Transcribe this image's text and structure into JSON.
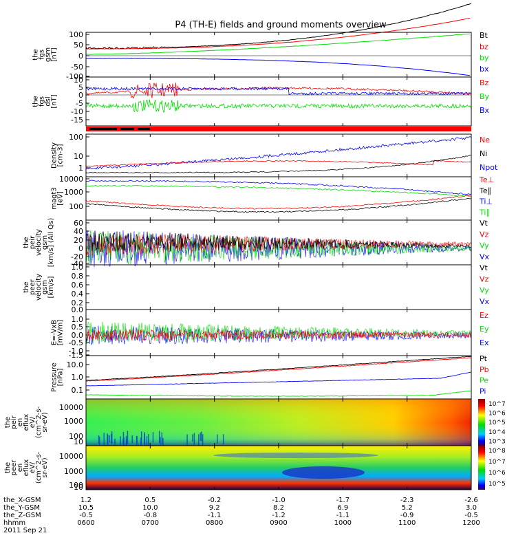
{
  "title": "P4 (TH-E) fields and ground moments overview",
  "colors": {
    "black": "#000000",
    "red": "#ff0000",
    "green": "#00dd00",
    "blue": "#0000ff"
  },
  "panels": [
    {
      "id": "fgs-gsm",
      "ylabel": [
        "the",
        "fgs",
        "gsm",
        "[nT]"
      ],
      "yticks": [
        "100",
        "50",
        "0",
        "-50",
        "-100"
      ],
      "legend": [
        {
          "label": "Bt",
          "color": "black"
        },
        {
          "label": "bz",
          "color": "red"
        },
        {
          "label": "by",
          "color": "green"
        },
        {
          "label": "bx",
          "color": "blue"
        }
      ]
    },
    {
      "id": "fgs-dsl",
      "ylabel": [
        "the",
        "fgs",
        "dsl",
        "[nT]"
      ],
      "yticks": [
        "10",
        "5",
        "0",
        "-5",
        "-10",
        "-15"
      ],
      "legend": [
        {
          "label": "Bz",
          "color": "red"
        },
        {
          "label": "By",
          "color": "green"
        },
        {
          "label": "Bx",
          "color": "blue"
        }
      ]
    },
    {
      "id": "density",
      "ylabel": [
        "Density",
        "[cm-3]"
      ],
      "yticks": [
        "100",
        "10",
        "1"
      ],
      "legend": [
        {
          "label": "Ne",
          "color": "red"
        },
        {
          "label": "Ni",
          "color": "black"
        },
        {
          "label": "Npot",
          "color": "blue"
        }
      ]
    },
    {
      "id": "temperature",
      "ylabel": [
        "magt3",
        "[eV]"
      ],
      "yticks": [
        "10000",
        "1000",
        "100"
      ],
      "legend": [
        {
          "label": "Te⊥",
          "color": "red"
        },
        {
          "label": "Te∥",
          "color": "black"
        },
        {
          "label": "Ti⊥",
          "color": "blue"
        },
        {
          "label": "Ti∥",
          "color": "green"
        }
      ]
    },
    {
      "id": "peir-velocity",
      "ylabel": [
        "the",
        "peir",
        "velocity",
        "gsm",
        "[km/s] (All Qs)"
      ],
      "yticks": [
        "60",
        "40",
        "20",
        "0",
        "-20",
        "-40"
      ],
      "legend": [
        {
          "label": "Vt",
          "color": "black"
        },
        {
          "label": "Vz",
          "color": "red"
        },
        {
          "label": "Vy",
          "color": "green"
        },
        {
          "label": "Vx",
          "color": "blue"
        }
      ]
    },
    {
      "id": "peer-velocity",
      "ylabel": [
        "the",
        "peer",
        "velocity",
        "gsm",
        "[km/s]"
      ],
      "yticks": [
        "1.0",
        "0.8",
        "0.6",
        "0.4",
        "0.2",
        "0.0"
      ],
      "legend": [
        {
          "label": "Vt",
          "color": "black"
        },
        {
          "label": "Vz",
          "color": "red"
        },
        {
          "label": "Vy",
          "color": "green"
        },
        {
          "label": "Vx",
          "color": "blue"
        }
      ]
    },
    {
      "id": "efield",
      "ylabel": [
        "E=-VxB",
        "[mV/m]"
      ],
      "yticks": [
        "1.0",
        "0.5",
        "0.0",
        "-0.5",
        "-1.0",
        "-1.5"
      ],
      "legend": [
        {
          "label": "Ez",
          "color": "red"
        },
        {
          "label": "Ey",
          "color": "green"
        },
        {
          "label": "Ex",
          "color": "blue"
        }
      ]
    },
    {
      "id": "pressure",
      "ylabel": [
        "Pressure",
        "[nPa]"
      ],
      "yticks": [
        "10.0",
        "1.0",
        "0.1"
      ],
      "legend": [
        {
          "label": "Pt",
          "color": "black"
        },
        {
          "label": "Pb",
          "color": "red"
        },
        {
          "label": "Pe",
          "color": "green"
        },
        {
          "label": "Pi",
          "color": "blue"
        }
      ]
    },
    {
      "id": "peir-eflux",
      "ylabel": [
        "the",
        "peir",
        "en",
        "eflux",
        "eV/",
        "(cm^2-s-",
        "sr-eV)"
      ],
      "yticks": [
        "10000",
        "1000",
        "100",
        "10"
      ],
      "colorbar": [
        "10^7",
        "10^6",
        "10^5",
        "10^4",
        "10^3"
      ]
    },
    {
      "id": "peer-eflux",
      "ylabel": [
        "the",
        "peer",
        "en",
        "eflux",
        "eV/",
        "(cm^2-s-",
        "sr-eV)"
      ],
      "yticks": [
        "10000",
        "1000",
        "100",
        "10"
      ],
      "colorbar": [
        "10^8",
        "10^7",
        "10^6",
        "10^5"
      ]
    }
  ],
  "xaxis": {
    "row_labels": [
      "the_X-GSM",
      "the_Y-GSM",
      "the_Z-GSM",
      "hhmm",
      "2011 Sep 21"
    ],
    "x_gsm": [
      "1.2",
      "0.5",
      "-0.2",
      "-1.0",
      "-1.7",
      "-2.3",
      "-2.6"
    ],
    "y_gsm": [
      "10.5",
      "10.0",
      "9.2",
      "8.2",
      "6.9",
      "5.2",
      "3.0"
    ],
    "z_gsm": [
      "-0.5",
      "-0.8",
      "-1.1",
      "-1.2",
      "-1.1",
      "-0.9",
      "-0.5"
    ],
    "hhmm": [
      "0600",
      "0700",
      "0800",
      "0900",
      "1000",
      "1100",
      "1200"
    ]
  },
  "chart_data": {
    "type": "line",
    "title": "P4 (TH-E) fields and ground moments overview",
    "x": [
      "0600",
      "0700",
      "0800",
      "0900",
      "1000",
      "1100",
      "1200"
    ],
    "xlabel": "hhmm",
    "panels": [
      {
        "name": "fgs-gsm",
        "ylim": [
          -100,
          100
        ],
        "series": [
          {
            "name": "Bt",
            "values": [
              28,
              30,
              35,
              42,
              60,
              90,
              130
            ]
          },
          {
            "name": "bz",
            "values": [
              28,
              29,
              33,
              40,
              55,
              85,
              120
            ]
          },
          {
            "name": "by",
            "values": [
              10,
              15,
              20,
              30,
              45,
              75,
              110
            ]
          },
          {
            "name": "bx",
            "values": [
              -5,
              -8,
              -12,
              -20,
              -35,
              -55,
              -100
            ]
          }
        ]
      },
      {
        "name": "fgs-dsl",
        "ylim": [
          -15,
          10
        ],
        "series": [
          {
            "name": "Bz",
            "values": [
              1,
              0,
              1,
              2,
              7,
              4,
              2
            ]
          },
          {
            "name": "By",
            "values": [
              -7,
              -6,
              -6,
              -6,
              -7,
              -7,
              -6
            ]
          },
          {
            "name": "Bx",
            "values": [
              3,
              2,
              1,
              1,
              0,
              0,
              1
            ]
          }
        ]
      },
      {
        "name": "density",
        "scale": "log",
        "ylim": [
          0.5,
          300
        ],
        "series": [
          {
            "name": "Ne",
            "values": [
              1.0,
              1.5,
              2.0,
              3.0,
              2.0,
              1.0,
              3.0
            ]
          },
          {
            "name": "Ni",
            "values": [
              0.6,
              0.7,
              0.8,
              1.0,
              1.5,
              3.0,
              20
            ]
          },
          {
            "name": "Npot",
            "values": [
              1.0,
              1.3,
              1.8,
              3.0,
              10,
              40,
              100
            ]
          }
        ]
      },
      {
        "name": "temperature",
        "scale": "log",
        "ylim": [
          50,
          12000
        ],
        "series": [
          {
            "name": "Te⊥",
            "values": [
              250,
              220,
              180,
              150,
              200,
              300,
              400
            ]
          },
          {
            "name": "Te∥",
            "values": [
              200,
              180,
              150,
              120,
              150,
              250,
              350
            ]
          },
          {
            "name": "Ti⊥",
            "values": [
              5000,
              4800,
              4000,
              3000,
              2500,
              1000,
              500
            ]
          },
          {
            "name": "Ti∥",
            "values": [
              3000,
              2800,
              2000,
              1500,
              1000,
              500,
              300
            ]
          }
        ]
      },
      {
        "name": "peir-velocity",
        "ylim": [
          -40,
          60
        ],
        "series": [
          {
            "name": "Vt",
            "values": [
              20,
              22,
              15,
              10,
              8,
              6,
              5
            ]
          },
          {
            "name": "Vz",
            "values": [
              5,
              5,
              3,
              2,
              2,
              1,
              1
            ]
          },
          {
            "name": "Vy",
            "values": [
              0,
              0,
              0,
              0,
              0,
              0,
              0
            ]
          },
          {
            "name": "Vx",
            "values": [
              0,
              0,
              0,
              0,
              0,
              0,
              0
            ]
          }
        ]
      },
      {
        "name": "efield",
        "ylim": [
          -1.5,
          1.0
        ],
        "series": [
          {
            "name": "Ez",
            "values": [
              0.1,
              0.1,
              0.05,
              0.05,
              0.0,
              0.0,
              0.0
            ]
          },
          {
            "name": "Ey",
            "values": [
              0.3,
              0.3,
              0.2,
              0.1,
              0.1,
              0.05,
              0.05
            ]
          },
          {
            "name": "Ex",
            "values": [
              -0.1,
              -0.1,
              -0.05,
              0.0,
              0.0,
              0.0,
              0.0
            ]
          }
        ]
      },
      {
        "name": "pressure",
        "scale": "log",
        "ylim": [
          0.03,
          30
        ],
        "series": [
          {
            "name": "Pt",
            "values": [
              0.5,
              0.6,
              1.0,
              1.5,
              3.0,
              6.0,
              20
            ]
          },
          {
            "name": "Pb",
            "values": [
              0.45,
              0.55,
              0.9,
              1.4,
              2.8,
              5.5,
              18
            ]
          },
          {
            "name": "Pe",
            "values": [
              0.04,
              0.04,
              0.03,
              0.03,
              0.03,
              0.04,
              0.1
            ]
          },
          {
            "name": "Pi",
            "values": [
              0.2,
              0.22,
              0.25,
              0.3,
              0.4,
              0.6,
              1.5
            ]
          }
        ]
      }
    ]
  }
}
